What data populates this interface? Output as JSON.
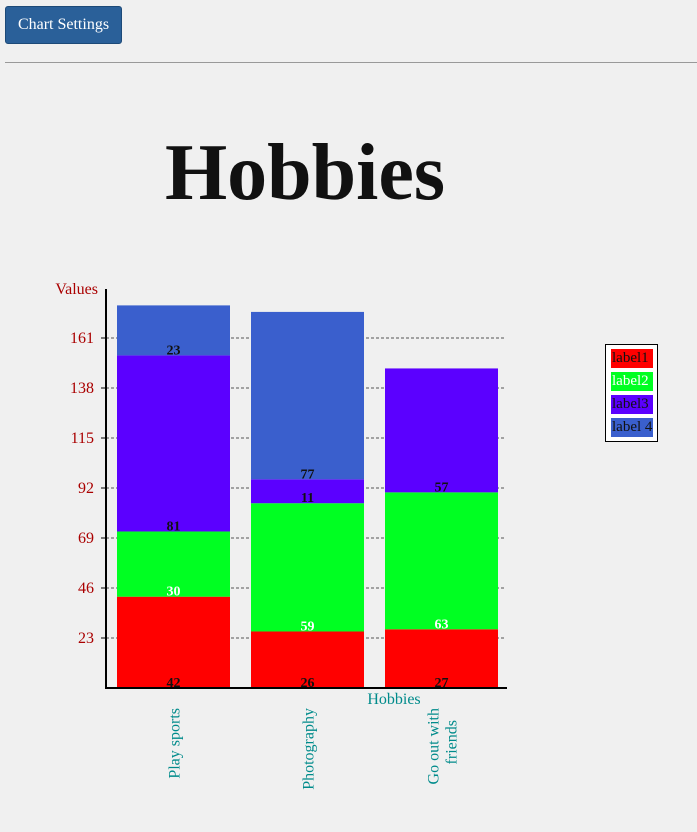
{
  "toolbar": {
    "settings_label": "Chart Settings"
  },
  "chart_data": {
    "type": "bar",
    "stacked": true,
    "title": "Hobbies",
    "xlabel": "Hobbies",
    "ylabel": "Values",
    "categories": [
      "Play sports",
      "Photography",
      "Go out with friends"
    ],
    "series": [
      {
        "name": "label1",
        "values": [
          42,
          26,
          27
        ],
        "color": "#ff0000",
        "label_color": "#111111",
        "legend_text_color": "#111111"
      },
      {
        "name": "label2",
        "values": [
          30,
          59,
          63
        ],
        "color": "#00ff22",
        "label_color": "#ffffff",
        "legend_text_color": "#ffffff"
      },
      {
        "name": "label3",
        "values": [
          81,
          11,
          57
        ],
        "color": "#5b00ff",
        "label_color": "#111111",
        "legend_text_color": "#111111"
      },
      {
        "name": "label 4",
        "values": [
          23,
          77,
          0
        ],
        "color": "#3a5fcd",
        "label_color": "#111111",
        "legend_text_color": "#111111"
      }
    ],
    "yticks": [
      23,
      46,
      69,
      92,
      115,
      138,
      161
    ],
    "ylim": [
      0,
      184
    ],
    "grid": true,
    "legend_position": "right",
    "colors": {
      "tick_label": "#aa0000",
      "category_label": "#008b8b",
      "xlabel": "#008b8b",
      "ylabel": "#aa0000"
    }
  }
}
